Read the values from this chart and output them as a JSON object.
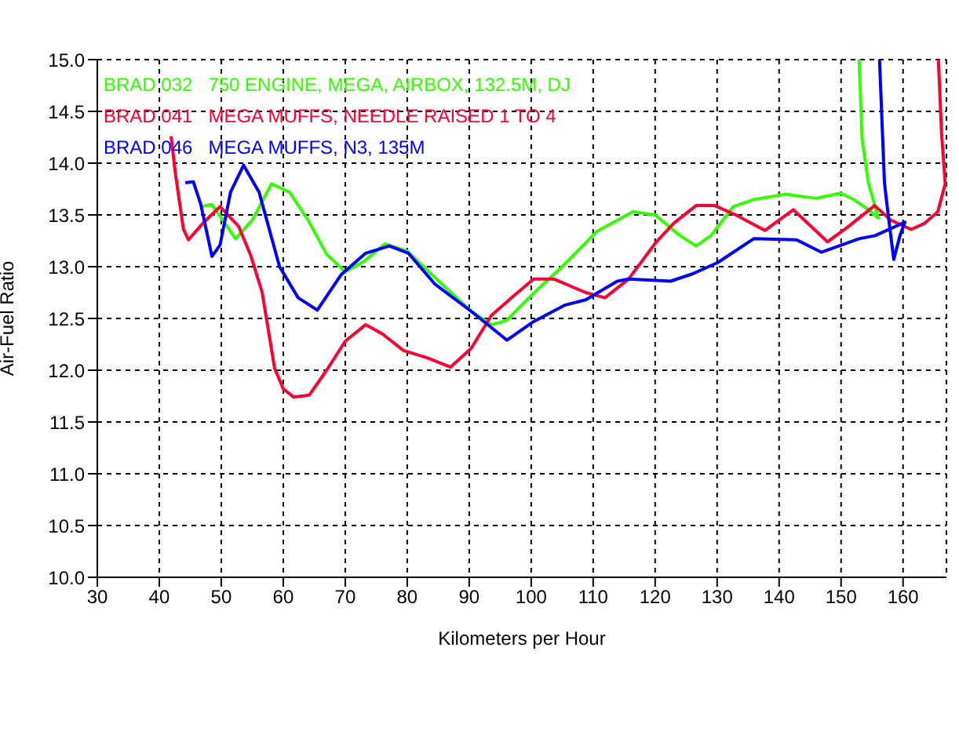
{
  "chart_data": {
    "type": "line",
    "xlabel": "Kilometers per Hour",
    "ylabel": "Air-Fuel Ratio",
    "xlim": [
      30,
      167
    ],
    "xticks": [
      30,
      40,
      50,
      60,
      70,
      80,
      90,
      100,
      110,
      120,
      130,
      140,
      150,
      160
    ],
    "ylim": [
      10,
      15
    ],
    "yticks": [
      {
        "value": 10,
        "label": "10.0"
      },
      10.5,
      {
        "value": 11,
        "label": "11.0"
      },
      11.5,
      {
        "value": 12,
        "label": "12.0"
      },
      12.5,
      {
        "value": 13,
        "label": "13.0"
      },
      13.5,
      {
        "value": 14,
        "label": "14.0"
      },
      14.5,
      {
        "value": 15,
        "label": "15.0"
      }
    ],
    "grid": true,
    "legend": "top left",
    "marker": "none",
    "line_style": "solid",
    "series": [
      {
        "name": "BRAD 032   750 ENGINE, MEGA, AIRBOX, 132.5M, DJ",
        "color": "#33ff00",
        "x": [
          46.7,
          48.5,
          52.3,
          55,
          58.1,
          61,
          64,
          67,
          70,
          73,
          76.4,
          80,
          84,
          90.3,
          93.6,
          96,
          100.5,
          105,
          110.6,
          116.4,
          120,
          124,
          126.6,
          129,
          132.6,
          136,
          141,
          146,
          149.9,
          152,
          154.4,
          156,
          154.4,
          153.4,
          152.9
        ],
        "values": [
          13.58,
          13.6,
          13.27,
          13.45,
          13.8,
          13.72,
          13.45,
          13.12,
          12.95,
          13.05,
          13.22,
          13.15,
          12.92,
          12.57,
          12.44,
          12.48,
          12.75,
          13.0,
          13.34,
          13.53,
          13.5,
          13.3,
          13.2,
          13.3,
          13.58,
          13.65,
          13.7,
          13.66,
          13.71,
          13.65,
          13.55,
          13.47,
          13.81,
          14.23,
          15.0
        ]
      },
      {
        "name": "BRAD 041   MEGA MUFFS, NEEDLE RAISED 1 TO 4",
        "color": "#ff0033",
        "x": [
          41.9,
          42.6,
          43.9,
          44.7,
          47.2,
          49.8,
          52.8,
          54.8,
          56.6,
          58.6,
          60,
          61.7,
          64.2,
          67,
          70,
          73.3,
          76,
          79.4,
          83.2,
          87,
          90.3,
          93.6,
          97.2,
          100.4,
          103.7,
          108.8,
          111.9,
          115.7,
          120.2,
          123,
          126.6,
          129.6,
          133,
          137.7,
          142.3,
          147.8,
          151,
          155.4,
          158,
          161.3,
          163.5,
          165.6,
          166.8,
          166.2,
          165.7
        ],
        "values": [
          14.26,
          13.9,
          13.36,
          13.26,
          13.43,
          13.58,
          13.39,
          13.1,
          12.75,
          12.02,
          11.82,
          11.74,
          11.76,
          12.0,
          12.28,
          12.44,
          12.35,
          12.19,
          12.12,
          12.03,
          12.21,
          12.53,
          12.72,
          12.88,
          12.88,
          12.75,
          12.7,
          12.88,
          13.24,
          13.42,
          13.59,
          13.59,
          13.5,
          13.35,
          13.55,
          13.24,
          13.38,
          13.59,
          13.45,
          13.36,
          13.42,
          13.53,
          13.8,
          14.3,
          15.0
        ]
      },
      {
        "name": "BRAD 046   MEGA MUFFS, N3, 135M",
        "color": "#0000ff",
        "x": [
          44.2,
          45.5,
          46.7,
          48.5,
          49.8,
          51.5,
          53.6,
          56.1,
          59.4,
          62.4,
          65.5,
          69.3,
          73.3,
          77.1,
          80.2,
          84.5,
          90.3,
          96.1,
          100.4,
          105.5,
          108.8,
          113.9,
          115.7,
          122.5,
          126,
          130.1,
          135.9,
          142.8,
          146.8,
          152.9,
          155.5,
          160.3,
          159.5,
          158.5,
          157.6,
          157,
          156.2
        ],
        "values": [
          13.81,
          13.82,
          13.6,
          13.1,
          13.21,
          13.72,
          13.98,
          13.72,
          13.0,
          12.7,
          12.58,
          12.92,
          13.13,
          13.2,
          13.13,
          12.83,
          12.57,
          12.29,
          12.47,
          12.63,
          12.68,
          12.86,
          12.88,
          12.86,
          12.93,
          13.04,
          13.27,
          13.26,
          13.14,
          13.27,
          13.3,
          13.43,
          13.3,
          13.07,
          13.5,
          13.81,
          15.0
        ]
      }
    ]
  }
}
